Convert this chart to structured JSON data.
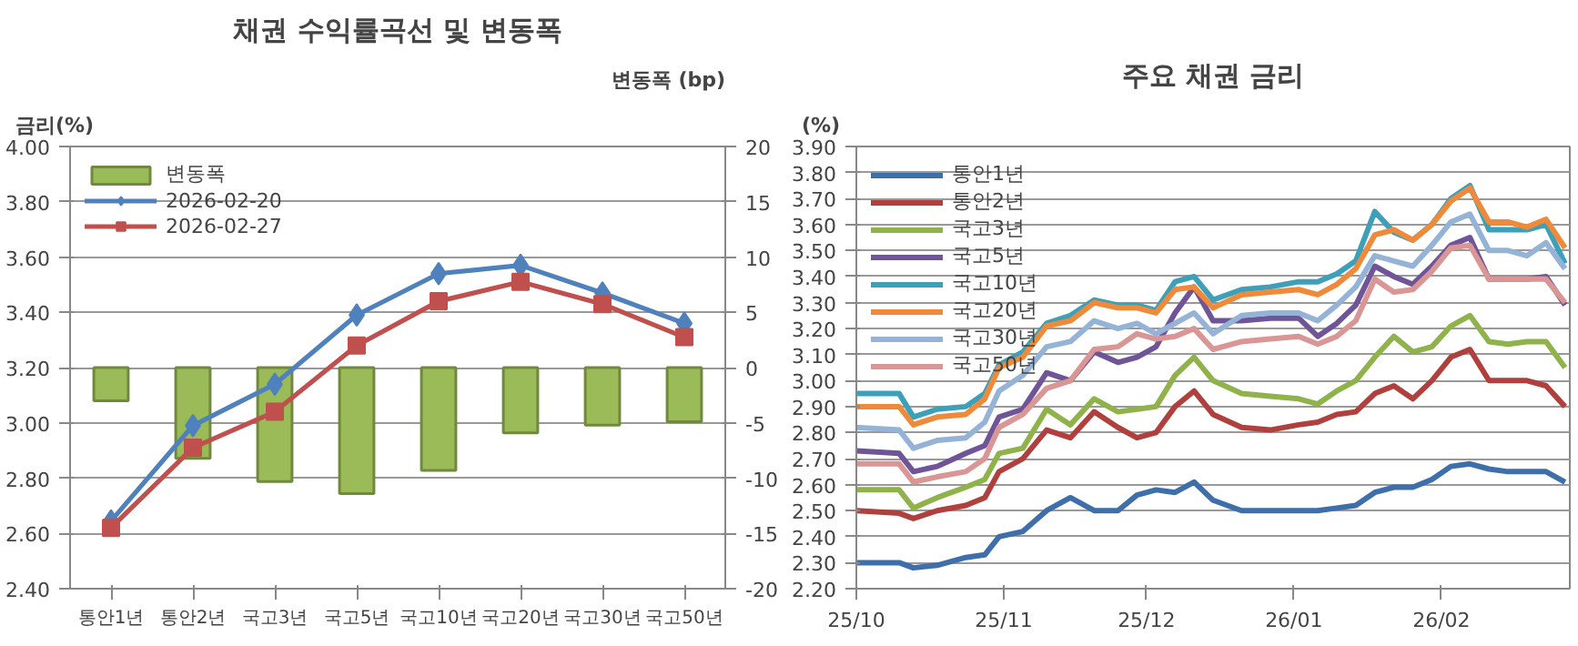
{
  "chart_data": [
    {
      "type": "line",
      "title": "채권 수익률곡선 및 변동폭",
      "ylabel": "금리(%)",
      "y2label": "변동폭 (bp)",
      "categories": [
        "통안1년",
        "통안2년",
        "국고3년",
        "국고5년",
        "국고10년",
        "국고20년",
        "국고30년",
        "국고50년"
      ],
      "ylim": [
        2.4,
        4.0
      ],
      "yticks": [
        {
          "value": 2.4,
          "label": "2.40"
        },
        {
          "value": 2.6,
          "label": "2.60"
        },
        {
          "value": 2.8,
          "label": "2.80"
        },
        {
          "value": 3.0,
          "label": "3.00"
        },
        {
          "value": 3.2,
          "label": "3.20"
        },
        {
          "value": 3.4,
          "label": "3.40"
        },
        {
          "value": 3.6,
          "label": "3.60"
        },
        {
          "value": 3.8,
          "label": "3.80"
        },
        {
          "value": 4.0,
          "label": "4.00"
        }
      ],
      "y2lim": [
        -20,
        20
      ],
      "y2ticks": [
        -20,
        -15,
        -10,
        -5,
        0,
        5,
        10,
        15,
        20
      ],
      "grid": "y",
      "legend": "top left",
      "series": [
        {
          "name": "변동폭",
          "type": "bar",
          "axis": "y2",
          "color": "#9bbb59",
          "values": [
            -3.0,
            -8.2,
            -10.3,
            -11.4,
            -9.3,
            -5.9,
            -5.2,
            -4.9
          ]
        },
        {
          "name": "2026-02-20",
          "type": "line",
          "color": "#4f81bd",
          "marker": "diamond",
          "values": [
            2.645,
            2.99,
            3.14,
            3.39,
            3.54,
            3.57,
            3.47,
            3.36
          ]
        },
        {
          "name": "2026-02-27",
          "type": "line",
          "color": "#c0504d",
          "marker": "square",
          "values": [
            2.62,
            2.91,
            3.04,
            3.28,
            3.44,
            3.51,
            3.43,
            3.31
          ]
        }
      ]
    },
    {
      "type": "line",
      "title": "주요 채권 금리",
      "ylabel": "(%)",
      "grid": "y",
      "legend": "top left",
      "marker": "none",
      "x": [
        "2025-10-01",
        "2025-10-10",
        "2025-10-13",
        "2025-10-18",
        "2025-10-24",
        "2025-10-28",
        "2025-10-31",
        "2025-11-05",
        "2025-11-10",
        "2025-11-15",
        "2025-11-20",
        "2025-11-25",
        "2025-11-29",
        "2025-12-03",
        "2025-12-07",
        "2025-12-11",
        "2025-12-15",
        "2025-12-21",
        "2025-12-27",
        "2026-01-02",
        "2026-01-06",
        "2026-01-10",
        "2026-01-14",
        "2026-01-18",
        "2026-01-22",
        "2026-01-26",
        "2026-01-30",
        "2026-02-03",
        "2026-02-07",
        "2026-02-11",
        "2026-02-15",
        "2026-02-19",
        "2026-02-23",
        "2026-02-27"
      ],
      "xlim": [
        "2025-10-01",
        "2026-02-28"
      ],
      "xticks": [
        {
          "value": "2025-10-01",
          "label": "25/10"
        },
        {
          "value": "2025-11-01",
          "label": "25/11"
        },
        {
          "value": "2025-12-01",
          "label": "25/12"
        },
        {
          "value": "2026-01-01",
          "label": "26/01"
        },
        {
          "value": "2026-02-01",
          "label": "26/02"
        }
      ],
      "ylim": [
        2.2,
        3.9
      ],
      "yticks": [
        {
          "value": 2.2,
          "label": "2.20"
        },
        {
          "value": 2.3,
          "label": "2.30"
        },
        {
          "value": 2.4,
          "label": "2.40"
        },
        {
          "value": 2.5,
          "label": "2.50"
        },
        {
          "value": 2.6,
          "label": "2.60"
        },
        {
          "value": 2.7,
          "label": "2.70"
        },
        {
          "value": 2.8,
          "label": "2.80"
        },
        {
          "value": 2.9,
          "label": "2.90"
        },
        {
          "value": 3.0,
          "label": "3.00"
        },
        {
          "value": 3.1,
          "label": "3.10"
        },
        {
          "value": 3.2,
          "label": "3.20"
        },
        {
          "value": 3.3,
          "label": "3.30"
        },
        {
          "value": 3.4,
          "label": "3.40"
        },
        {
          "value": 3.5,
          "label": "3.50"
        },
        {
          "value": 3.6,
          "label": "3.60"
        },
        {
          "value": 3.7,
          "label": "3.70"
        },
        {
          "value": 3.8,
          "label": "3.80"
        },
        {
          "value": 3.9,
          "label": "3.90"
        }
      ],
      "series": [
        {
          "name": "통안1년",
          "color": "#3f6fab",
          "values": [
            2.3,
            2.3,
            2.28,
            2.29,
            2.32,
            2.33,
            2.4,
            2.42,
            2.5,
            2.55,
            2.5,
            2.5,
            2.56,
            2.58,
            2.57,
            2.61,
            2.54,
            2.5,
            2.5,
            2.5,
            2.5,
            2.51,
            2.52,
            2.57,
            2.59,
            2.59,
            2.62,
            2.67,
            2.68,
            2.66,
            2.65,
            2.65,
            2.65,
            2.61
          ]
        },
        {
          "name": "통안2년",
          "color": "#b0403d",
          "values": [
            2.5,
            2.49,
            2.47,
            2.5,
            2.52,
            2.55,
            2.65,
            2.7,
            2.81,
            2.78,
            2.88,
            2.82,
            2.78,
            2.8,
            2.9,
            2.96,
            2.87,
            2.82,
            2.81,
            2.83,
            2.84,
            2.87,
            2.88,
            2.95,
            2.98,
            2.93,
            3.0,
            3.09,
            3.12,
            3.0,
            3.0,
            3.0,
            2.98,
            2.9
          ]
        },
        {
          "name": "국고3년",
          "color": "#8fb24a",
          "values": [
            2.58,
            2.58,
            2.51,
            2.55,
            2.59,
            2.62,
            2.72,
            2.74,
            2.89,
            2.83,
            2.93,
            2.88,
            2.89,
            2.9,
            3.02,
            3.09,
            3.0,
            2.95,
            2.94,
            2.93,
            2.91,
            2.96,
            3.0,
            3.09,
            3.17,
            3.11,
            3.13,
            3.21,
            3.25,
            3.15,
            3.14,
            3.15,
            3.15,
            3.05
          ]
        },
        {
          "name": "국고5년",
          "color": "#6f5597",
          "values": [
            2.73,
            2.72,
            2.65,
            2.67,
            2.72,
            2.75,
            2.86,
            2.89,
            3.03,
            3.0,
            3.11,
            3.07,
            3.09,
            3.13,
            3.26,
            3.36,
            3.23,
            3.23,
            3.24,
            3.24,
            3.17,
            3.22,
            3.29,
            3.44,
            3.4,
            3.37,
            3.44,
            3.52,
            3.55,
            3.39,
            3.39,
            3.39,
            3.4,
            3.29
          ]
        },
        {
          "name": "국고10년",
          "color": "#3ea0b8",
          "values": [
            2.95,
            2.95,
            2.86,
            2.89,
            2.9,
            2.95,
            3.06,
            3.11,
            3.22,
            3.25,
            3.31,
            3.29,
            3.29,
            3.27,
            3.38,
            3.4,
            3.31,
            3.35,
            3.36,
            3.38,
            3.38,
            3.41,
            3.46,
            3.65,
            3.57,
            3.54,
            3.6,
            3.7,
            3.75,
            3.58,
            3.58,
            3.58,
            3.6,
            3.45
          ]
        },
        {
          "name": "국고20년",
          "color": "#ee8a3a",
          "values": [
            2.9,
            2.9,
            2.83,
            2.86,
            2.87,
            2.93,
            3.05,
            3.09,
            3.21,
            3.23,
            3.3,
            3.28,
            3.28,
            3.26,
            3.35,
            3.36,
            3.28,
            3.33,
            3.34,
            3.35,
            3.33,
            3.37,
            3.43,
            3.56,
            3.58,
            3.54,
            3.6,
            3.69,
            3.74,
            3.61,
            3.61,
            3.59,
            3.62,
            3.51
          ]
        },
        {
          "name": "국고30년",
          "color": "#95b3d7",
          "values": [
            2.82,
            2.81,
            2.74,
            2.77,
            2.78,
            2.84,
            2.96,
            3.02,
            3.13,
            3.15,
            3.23,
            3.2,
            3.22,
            3.18,
            3.22,
            3.26,
            3.18,
            3.25,
            3.26,
            3.26,
            3.23,
            3.29,
            3.36,
            3.48,
            3.46,
            3.44,
            3.52,
            3.61,
            3.64,
            3.5,
            3.5,
            3.48,
            3.53,
            3.43
          ]
        },
        {
          "name": "국고50년",
          "color": "#d99694",
          "values": [
            2.68,
            2.68,
            2.61,
            2.63,
            2.65,
            2.7,
            2.82,
            2.87,
            2.97,
            3.0,
            3.12,
            3.13,
            3.18,
            3.16,
            3.17,
            3.2,
            3.12,
            3.15,
            3.16,
            3.17,
            3.14,
            3.17,
            3.23,
            3.39,
            3.34,
            3.35,
            3.42,
            3.51,
            3.52,
            3.39,
            3.39,
            3.39,
            3.39,
            3.3
          ]
        }
      ]
    }
  ]
}
